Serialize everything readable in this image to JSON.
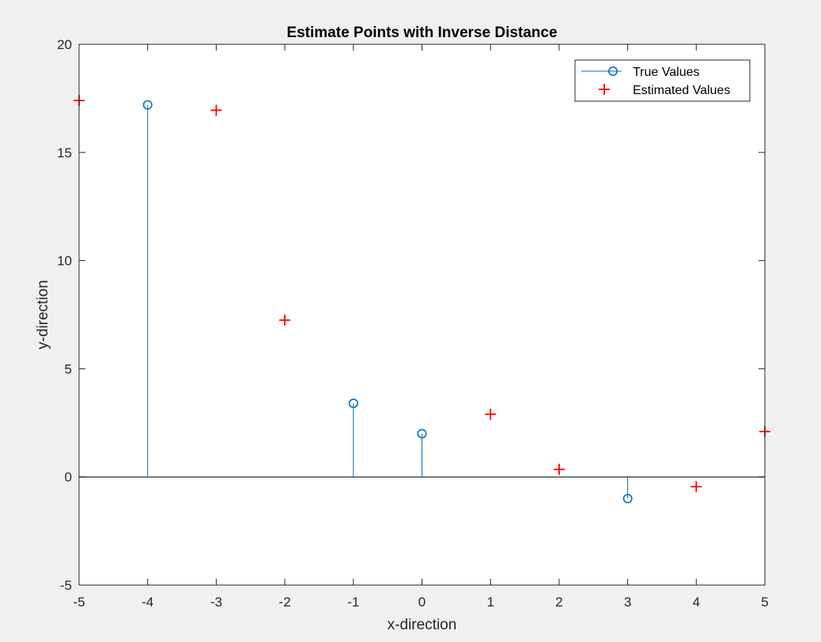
{
  "chart_data": {
    "type": "scatter",
    "title": "Estimate Points with Inverse Distance",
    "xlabel": "x-direction",
    "ylabel": "y-direction",
    "xlim": [
      -5,
      5
    ],
    "ylim": [
      -5,
      20
    ],
    "xticks": [
      -5,
      -4,
      -3,
      -2,
      -1,
      0,
      1,
      2,
      3,
      4,
      5
    ],
    "yticks": [
      -5,
      0,
      5,
      10,
      15,
      20
    ],
    "grid": false,
    "legend_position": "top-right",
    "series": [
      {
        "name": "True Values",
        "style": "stem",
        "marker": "circle",
        "color": "#0072BD",
        "x": [
          -4,
          -1,
          0,
          3
        ],
        "y": [
          17.2,
          3.4,
          2.0,
          -1.0
        ]
      },
      {
        "name": "Estimated Values",
        "style": "markers",
        "marker": "plus",
        "color": "#FF0000",
        "x": [
          -5,
          -3,
          -2,
          1,
          2,
          4,
          5
        ],
        "y": [
          17.4,
          16.95,
          7.25,
          2.9,
          0.35,
          -0.45,
          2.1
        ]
      }
    ]
  }
}
